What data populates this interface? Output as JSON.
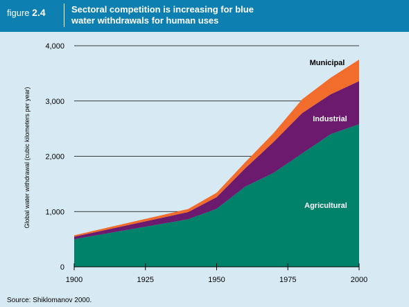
{
  "header": {
    "figure_word": "figure",
    "figure_number": "2.4",
    "title_line1": "Sectoral competition is increasing for blue",
    "title_line2": "water withdrawals for human uses"
  },
  "source": "Source: Shiklomanov 2000.",
  "colors": {
    "header_bg": "#0d7fb0",
    "page_bg": "#d7e9f3",
    "agricultural": "#00816a",
    "industrial": "#6b1a6e",
    "municipal": "#f26c2b"
  },
  "chart_data": {
    "type": "area",
    "stacked": true,
    "x": [
      1900,
      1940,
      1950,
      1960,
      1970,
      1980,
      1990,
      2000
    ],
    "series": [
      {
        "name": "Agricultural",
        "values": [
          500,
          860,
          1050,
          1450,
          1700,
          2050,
          2400,
          2580
        ]
      },
      {
        "name": "Industrial",
        "values": [
          45,
          130,
          210,
          330,
          560,
          730,
          720,
          780
        ]
      },
      {
        "name": "Municipal",
        "values": [
          25,
          55,
          80,
          110,
          160,
          250,
          300,
          390
        ]
      }
    ],
    "ylabel": "Global water withdrawal (cubic kilometers per year)",
    "xlabel": "",
    "xlim": [
      1900,
      2000
    ],
    "ylim": [
      0,
      4000
    ],
    "xticks": [
      1900,
      1925,
      1950,
      1975,
      2000
    ],
    "xtick_labels": [
      "1900",
      "1925",
      "1950",
      "1975",
      "2000"
    ],
    "yticks": [
      0,
      1000,
      2000,
      3000,
      4000
    ],
    "ytick_labels": [
      "0",
      "1,000",
      "2,000",
      "3,000",
      "4,000"
    ],
    "grid": "horizontal",
    "legend": "inline labels"
  }
}
